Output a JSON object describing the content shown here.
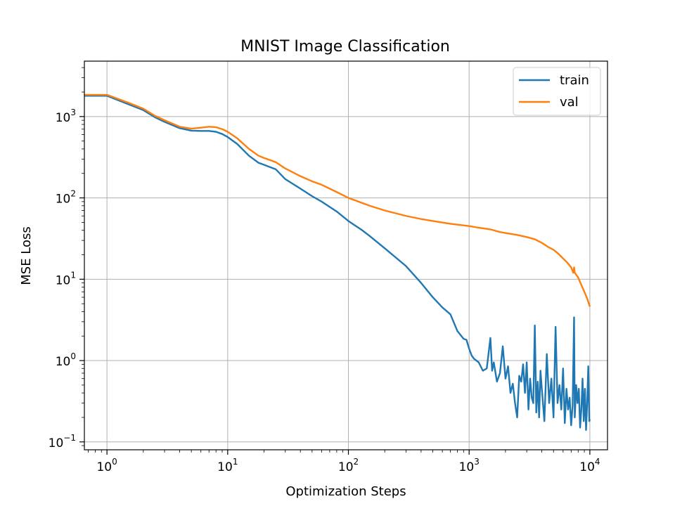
{
  "chart_data": {
    "type": "line",
    "title": "MNIST Image Classification",
    "xlabel": "Optimization Steps",
    "ylabel": "MSE Loss",
    "xscale": "log",
    "yscale": "log",
    "xlim": [
      0.65,
      14000
    ],
    "ylim": [
      0.08,
      4800
    ],
    "grid": true,
    "legend_position": "top-right",
    "x_ticks": [
      {
        "value": 1,
        "base": "10",
        "exp": "0"
      },
      {
        "value": 10,
        "base": "10",
        "exp": "1"
      },
      {
        "value": 100,
        "base": "10",
        "exp": "2"
      },
      {
        "value": 1000,
        "base": "10",
        "exp": "3"
      },
      {
        "value": 10000,
        "base": "10",
        "exp": "4"
      }
    ],
    "y_ticks": [
      {
        "value": 0.1,
        "base": "10",
        "exp": "−1"
      },
      {
        "value": 1,
        "base": "10",
        "exp": "0"
      },
      {
        "value": 10,
        "base": "10",
        "exp": "1"
      },
      {
        "value": 100,
        "base": "10",
        "exp": "2"
      },
      {
        "value": 1000,
        "base": "10",
        "exp": "3"
      }
    ],
    "series": [
      {
        "name": "train",
        "color": "#1f77b4",
        "points": [
          [
            0.65,
            1800
          ],
          [
            1,
            1800
          ],
          [
            1.5,
            1420
          ],
          [
            2,
            1200
          ],
          [
            2.5,
            980
          ],
          [
            3,
            860
          ],
          [
            4,
            720
          ],
          [
            5,
            670
          ],
          [
            6,
            665
          ],
          [
            7,
            665
          ],
          [
            8,
            650
          ],
          [
            9,
            610
          ],
          [
            10,
            560
          ],
          [
            12,
            460
          ],
          [
            15,
            330
          ],
          [
            18,
            270
          ],
          [
            20,
            255
          ],
          [
            25,
            225
          ],
          [
            30,
            170
          ],
          [
            40,
            130
          ],
          [
            50,
            105
          ],
          [
            60,
            90
          ],
          [
            80,
            68
          ],
          [
            100,
            52
          ],
          [
            130,
            40
          ],
          [
            150,
            34
          ],
          [
            200,
            24
          ],
          [
            300,
            14.5
          ],
          [
            400,
            9
          ],
          [
            500,
            6
          ],
          [
            600,
            4.5
          ],
          [
            700,
            3.7
          ],
          [
            800,
            2.3
          ],
          [
            900,
            1.85
          ],
          [
            950,
            1.8
          ],
          [
            1000,
            1.4
          ],
          [
            1050,
            1.15
          ],
          [
            1100,
            1.05
          ],
          [
            1200,
            0.95
          ],
          [
            1300,
            0.75
          ],
          [
            1400,
            0.8
          ],
          [
            1500,
            1.9
          ],
          [
            1550,
            0.75
          ],
          [
            1600,
            0.95
          ],
          [
            1700,
            0.55
          ],
          [
            1800,
            0.7
          ],
          [
            1900,
            1.5
          ],
          [
            2000,
            0.6
          ],
          [
            2100,
            0.85
          ],
          [
            2200,
            0.4
          ],
          [
            2300,
            0.52
          ],
          [
            2400,
            0.3
          ],
          [
            2500,
            0.2
          ],
          [
            2600,
            0.65
          ],
          [
            2700,
            0.55
          ],
          [
            2800,
            0.9
          ],
          [
            2900,
            0.4
          ],
          [
            3000,
            0.95
          ],
          [
            3100,
            0.25
          ],
          [
            3200,
            0.6
          ],
          [
            3300,
            0.35
          ],
          [
            3400,
            0.3
          ],
          [
            3500,
            2.7
          ],
          [
            3600,
            0.23
          ],
          [
            3700,
            0.55
          ],
          [
            3800,
            0.2
          ],
          [
            3900,
            0.75
          ],
          [
            4000,
            0.45
          ],
          [
            4200,
            0.18
          ],
          [
            4400,
            1.2
          ],
          [
            4600,
            0.3
          ],
          [
            4800,
            0.6
          ],
          [
            5000,
            0.2
          ],
          [
            5200,
            2.6
          ],
          [
            5400,
            0.3
          ],
          [
            5600,
            0.5
          ],
          [
            5800,
            0.25
          ],
          [
            6000,
            0.8
          ],
          [
            6200,
            0.17
          ],
          [
            6400,
            0.45
          ],
          [
            6600,
            0.25
          ],
          [
            6800,
            0.35
          ],
          [
            7000,
            0.16
          ],
          [
            7200,
            0.28
          ],
          [
            7400,
            3.4
          ],
          [
            7500,
            0.2
          ],
          [
            7700,
            0.5
          ],
          [
            7900,
            0.3
          ],
          [
            8100,
            0.45
          ],
          [
            8300,
            0.15
          ],
          [
            8500,
            0.25
          ],
          [
            8700,
            0.6
          ],
          [
            8900,
            0.18
          ],
          [
            9100,
            0.45
          ],
          [
            9300,
            0.14
          ],
          [
            9500,
            0.3
          ],
          [
            9700,
            0.85
          ],
          [
            9900,
            0.18
          ],
          [
            10000,
            0.19
          ]
        ]
      },
      {
        "name": "val",
        "color": "#ff7f0e",
        "points": [
          [
            0.65,
            1850
          ],
          [
            1,
            1850
          ],
          [
            1.5,
            1480
          ],
          [
            2,
            1250
          ],
          [
            2.5,
            1020
          ],
          [
            3,
            900
          ],
          [
            4,
            750
          ],
          [
            5,
            710
          ],
          [
            6,
            730
          ],
          [
            7,
            750
          ],
          [
            8,
            740
          ],
          [
            9,
            700
          ],
          [
            10,
            650
          ],
          [
            12,
            540
          ],
          [
            15,
            400
          ],
          [
            18,
            330
          ],
          [
            20,
            310
          ],
          [
            25,
            275
          ],
          [
            30,
            230
          ],
          [
            40,
            185
          ],
          [
            50,
            160
          ],
          [
            60,
            145
          ],
          [
            80,
            118
          ],
          [
            100,
            100
          ],
          [
            150,
            80
          ],
          [
            200,
            70
          ],
          [
            300,
            60
          ],
          [
            400,
            55
          ],
          [
            500,
            52
          ],
          [
            700,
            48
          ],
          [
            1000,
            45
          ],
          [
            1200,
            43
          ],
          [
            1500,
            41
          ],
          [
            1800,
            38
          ],
          [
            2000,
            37
          ],
          [
            2500,
            35
          ],
          [
            3000,
            33
          ],
          [
            3500,
            31
          ],
          [
            4000,
            28
          ],
          [
            4500,
            25
          ],
          [
            5000,
            23
          ],
          [
            5200,
            22
          ],
          [
            5400,
            21
          ],
          [
            6000,
            18
          ],
          [
            6500,
            16
          ],
          [
            7000,
            14
          ],
          [
            7300,
            12
          ],
          [
            7400,
            14
          ],
          [
            7500,
            12
          ],
          [
            8000,
            10.5
          ],
          [
            8500,
            8.5
          ],
          [
            9000,
            7
          ],
          [
            9500,
            5.8
          ],
          [
            10000,
            4.6
          ]
        ]
      }
    ]
  }
}
